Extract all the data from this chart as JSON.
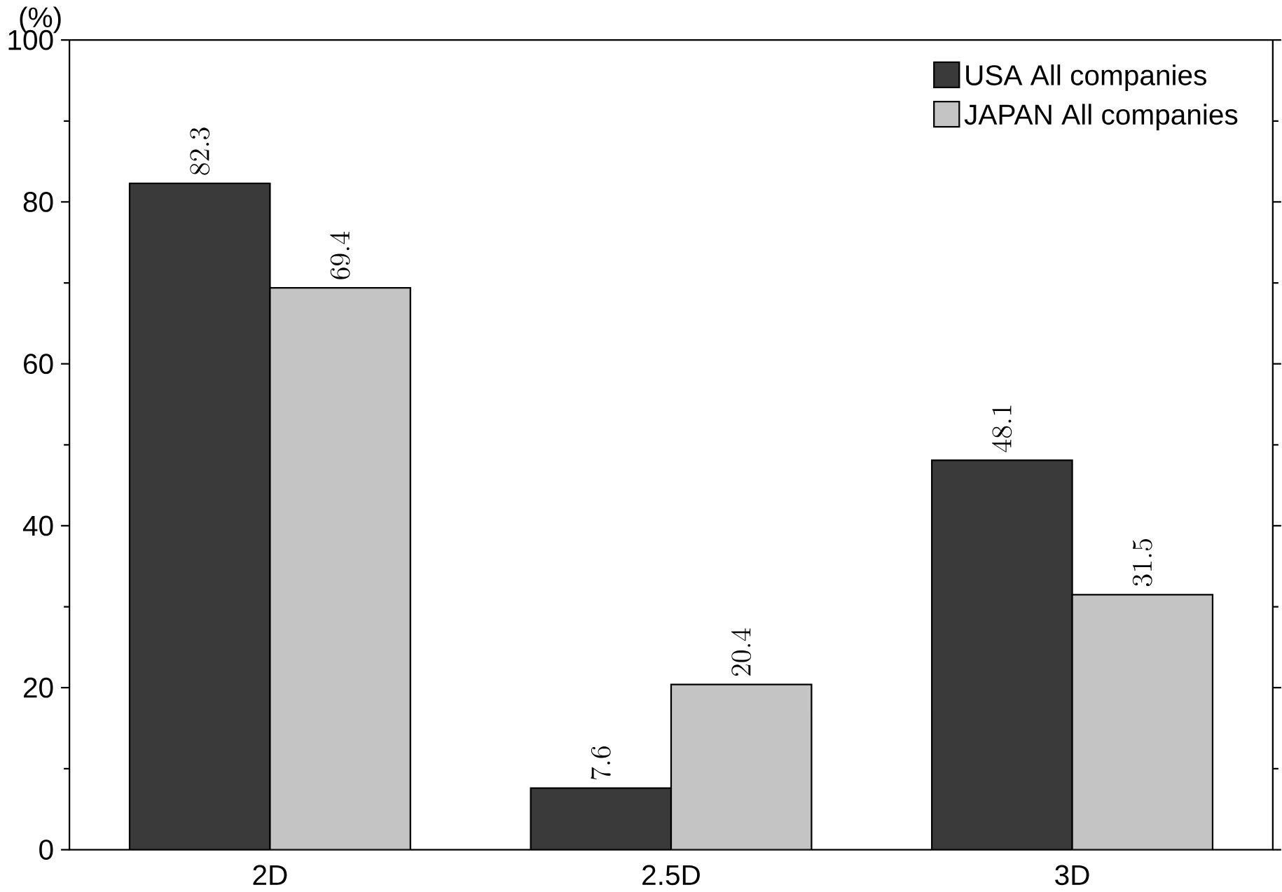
{
  "chart_data": {
    "type": "bar",
    "ylabel": "(%)",
    "categories": [
      "2D",
      "2.5D",
      "3D"
    ],
    "series": [
      {
        "name": "USA All companies",
        "color": "#3a3a3a",
        "values": [
          82.3,
          7.6,
          48.1
        ]
      },
      {
        "name": "JAPAN All companies",
        "color": "#c4c4c4",
        "values": [
          69.4,
          20.4,
          31.5
        ]
      }
    ],
    "ylim": [
      0,
      100
    ],
    "yticks": [
      0,
      20,
      40,
      60,
      80,
      100
    ],
    "data_labels": true,
    "legend": "top right",
    "grid": false
  }
}
